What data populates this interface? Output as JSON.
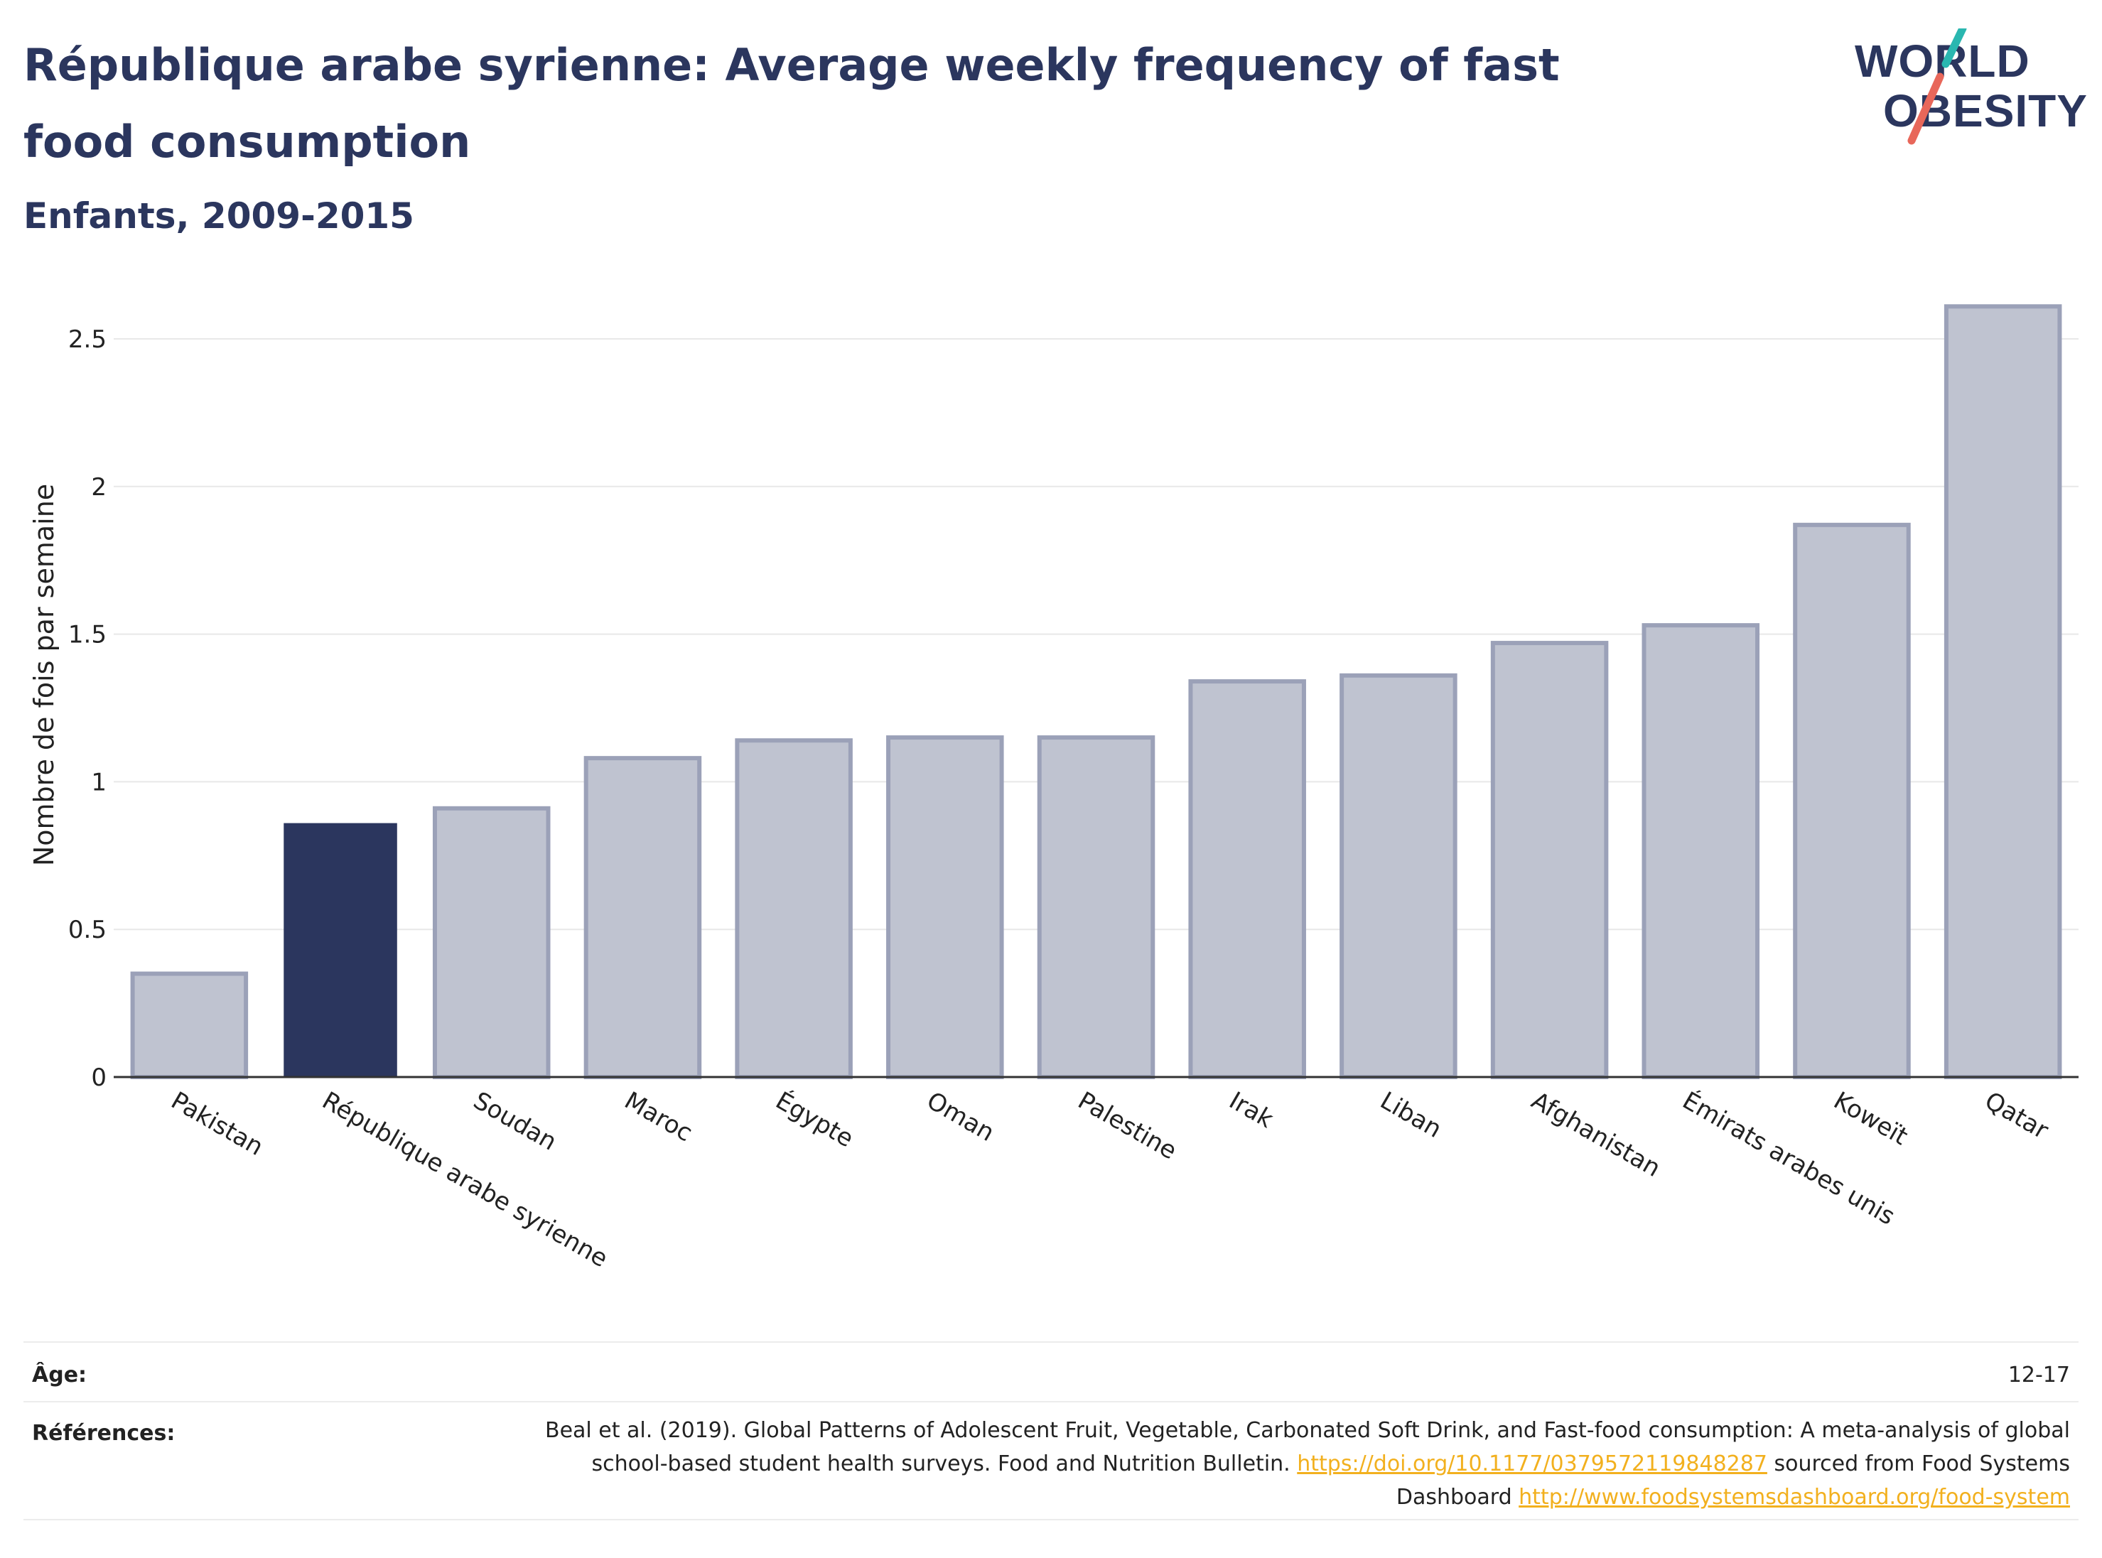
{
  "header": {
    "title": "République arabe syrienne: Average weekly frequency of fast food consumption",
    "subtitle": "Enfants, 2009-2015"
  },
  "logo": {
    "line1": "WORLD",
    "line2": "OBESITY"
  },
  "colors": {
    "highlight": "#2b365e",
    "bar": "#bfc3d0",
    "bar_border": "#9ba1b8",
    "grid": "#e8e8e8",
    "logo_teal": "#2ab7b0",
    "logo_red": "#e8675a",
    "link": "#f2b01e"
  },
  "chart_data": {
    "type": "bar",
    "categories": [
      "Pakistan",
      "République arabe syrienne",
      "Soudan",
      "Maroc",
      "Égypte",
      "Oman",
      "Palestine",
      "Irak",
      "Liban",
      "Afghanistan",
      "Émirats arabes unis",
      "Koweït",
      "Qatar"
    ],
    "values": [
      0.35,
      0.86,
      0.91,
      1.08,
      1.14,
      1.15,
      1.15,
      1.34,
      1.36,
      1.47,
      1.53,
      1.87,
      2.61
    ],
    "highlight_category": "République arabe syrienne",
    "ylabel": "Nombre de fois par semaine",
    "xlabel": "",
    "ylim": [
      0,
      2.7
    ],
    "yticks": [
      0,
      0.5,
      1,
      1.5,
      2,
      2.5
    ],
    "ytick_labels": [
      "0",
      "0.5",
      "1",
      "1.5",
      "2",
      "2.5"
    ],
    "grid": true
  },
  "footer": {
    "age_label": "Âge:",
    "age_value": "12-17",
    "ref_label": "Références:",
    "ref_text_1": "Beal et al. (2019). Global Patterns of Adolescent Fruit, Vegetable, Carbonated Soft Drink, and Fast-food consumption: A meta-analysis of global school-based student health surveys. Food and Nutrition Bulletin. ",
    "ref_link_1": "https://doi.org/10.1177/0379572119848287",
    "ref_text_2": " sourced from Food Systems Dashboard ",
    "ref_link_2": "http://www.foodsystemsdashboard.org/food-system"
  }
}
